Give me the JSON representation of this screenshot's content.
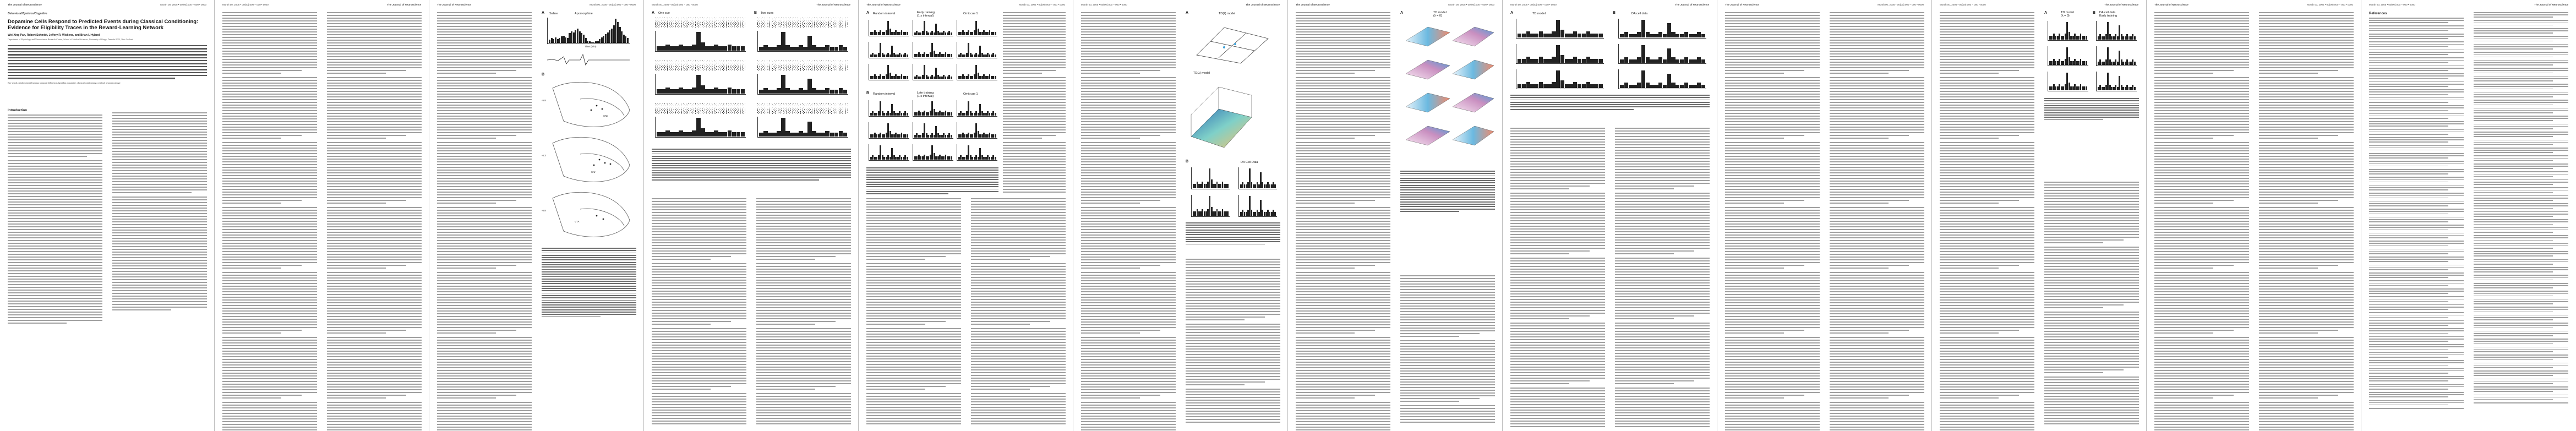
{
  "header": {
    "journal": "The Journal of Neuroscience",
    "issue": "Month 00, 2005 • 00(00):000 – 000 • 0000"
  },
  "page1": {
    "section": "Behavioral/Systems/Cognitive",
    "title": "Dopamine Cells Respond to Predicted Events during Classical Conditioning: Evidence for Eligibility Traces in the Reward-Learning Network",
    "authors": "Wei-Xing Pan, Robert Schmidt, Jeffery R. Wickens, and Brian I. Hyland",
    "affiliation": "Department of Physiology and Neuroscience Research Centre, School of Medical Sciences, University of Otago, Dunedin 9001, New Zealand",
    "keywords": "Key words: reinforcement learning; temporal difference algorithm; dopamine; classical conditioning; cerebral; neurophysiology",
    "intro": "Introduction"
  },
  "page3": {
    "panel_a": "A",
    "panel_a_title": "Saline",
    "panel_a_title2": "Apomorphine",
    "x_label": "Time (min)",
    "panel_b": "B",
    "levels": [
      "-5.8",
      "-6.3",
      "-6.8"
    ],
    "regions": [
      "SNc",
      "SNr",
      "VTA"
    ]
  },
  "page4": {
    "panel_a": "A",
    "panel_a_title": "One cue",
    "panel_b": "B",
    "panel_b_title": "Two cues"
  },
  "page5": {
    "panel_a": "A",
    "panel_a_title": "Random interval",
    "panel_a2_title": "Early training",
    "panel_a2_sub": "(1 s interval)",
    "panel_a3_title": "Omit cue 1",
    "panel_b": "B",
    "panel_b_title": "Random interval",
    "panel_b2_title": "Late training",
    "panel_b2_sub": "(1 s interval)",
    "panel_b3_title": "Omit cue 1"
  },
  "page6": {
    "panel_a": "A",
    "panel_a_title": "TD(λ) model",
    "panel_b_title": "TD(λ) model",
    "panel_b": "B",
    "panel_b2_title": "DA Cell Data"
  },
  "page7": {
    "panel_a": "A",
    "panel_a_title": "TD model",
    "panel_a_sub": "(λ = 0)",
    "panel_b": "B",
    "panel_b_title": "DA cell data",
    "panel_b_sub": "Early training"
  },
  "page12": {
    "references": "References"
  },
  "chart_data": [
    {
      "type": "bar",
      "title": "Saline / Apomorphine",
      "xlabel": "Time (min)",
      "values": [
        4,
        6,
        5,
        7,
        5,
        6,
        8,
        9,
        7,
        6,
        12,
        14,
        13,
        16,
        18,
        14,
        12,
        10,
        6,
        3,
        2,
        1,
        1,
        2,
        3,
        5,
        7,
        9,
        11,
        13,
        16,
        18,
        22,
        30,
        26,
        20,
        14,
        10,
        8,
        6
      ]
    },
    {
      "type": "bar",
      "title": "One cue",
      "values": [
        2,
        2,
        3,
        2,
        2,
        3,
        2,
        2,
        3,
        9,
        4,
        2,
        2,
        3,
        2,
        2,
        3,
        2,
        2,
        2
      ]
    },
    {
      "type": "bar",
      "title": "Two cues",
      "values": [
        2,
        3,
        2,
        2,
        3,
        10,
        3,
        2,
        2,
        3,
        2,
        8,
        3,
        2,
        2,
        3,
        2,
        2,
        3,
        2
      ]
    }
  ]
}
